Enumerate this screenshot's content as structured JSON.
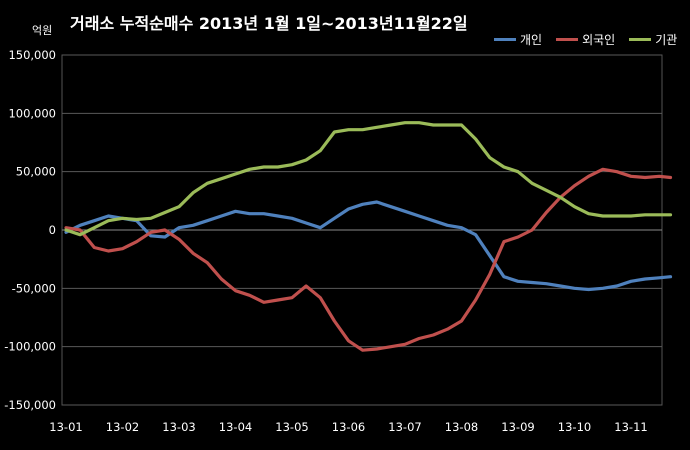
{
  "chart_data": {
    "type": "line",
    "title": "거래소  누적순매수 2013년 1월 1일~2013년11월22일",
    "unit_label": "억원",
    "ylim": [
      -150000,
      150000
    ],
    "yticks": [
      "150,000",
      "100,000",
      "50,000",
      "0",
      "-50,000",
      "-100,000",
      "-150,000"
    ],
    "ytick_values": [
      150000,
      100000,
      50000,
      0,
      -50000,
      -100000,
      -150000
    ],
    "xtick_labels": [
      "13-01",
      "13-02",
      "13-03",
      "13-04",
      "13-05",
      "13-06",
      "13-07",
      "13-08",
      "13-09",
      "13-10",
      "13-11"
    ],
    "grid": true,
    "legend_position": "top-right",
    "x": [
      0,
      0.25,
      0.5,
      0.75,
      1.0,
      1.25,
      1.5,
      1.75,
      2.0,
      2.25,
      2.5,
      2.75,
      3.0,
      3.25,
      3.5,
      3.75,
      4.0,
      4.25,
      4.5,
      4.75,
      5.0,
      5.25,
      5.5,
      5.75,
      6.0,
      6.25,
      6.5,
      6.75,
      7.0,
      7.25,
      7.5,
      7.75,
      8.0,
      8.25,
      8.5,
      8.75,
      9.0,
      9.25,
      9.5,
      9.75,
      10.0,
      10.25,
      10.5,
      10.7
    ],
    "series": [
      {
        "name": "개인",
        "color": "#4f81bd",
        "values": [
          -2000,
          4000,
          8000,
          12000,
          10000,
          8000,
          -5000,
          -6000,
          2000,
          4000,
          8000,
          12000,
          16000,
          14000,
          14000,
          12000,
          10000,
          6000,
          2000,
          10000,
          18000,
          22000,
          24000,
          20000,
          16000,
          12000,
          8000,
          4000,
          2000,
          -4000,
          -22000,
          -40000,
          -44000,
          -45000,
          -46000,
          -48000,
          -50000,
          -51000,
          -50000,
          -48000,
          -44000,
          -42000,
          -41000,
          -40000
        ]
      },
      {
        "name": "외국인",
        "color": "#c0504d",
        "values": [
          2000,
          0,
          -15000,
          -18000,
          -16000,
          -10000,
          -2000,
          0,
          -8000,
          -20000,
          -28000,
          -42000,
          -52000,
          -56000,
          -62000,
          -60000,
          -58000,
          -48000,
          -58000,
          -78000,
          -95000,
          -103000,
          -102000,
          -100000,
          -98000,
          -93000,
          -90000,
          -85000,
          -78000,
          -60000,
          -38000,
          -10000,
          -6000,
          0,
          15000,
          28000,
          38000,
          46000,
          52000,
          50000,
          46000,
          45000,
          46000,
          45000
        ]
      },
      {
        "name": "기관",
        "color": "#9bbb59",
        "values": [
          0,
          -4000,
          2000,
          8000,
          10000,
          9000,
          10000,
          15000,
          20000,
          32000,
          40000,
          44000,
          48000,
          52000,
          54000,
          54000,
          56000,
          60000,
          68000,
          84000,
          86000,
          86000,
          88000,
          90000,
          92000,
          92000,
          90000,
          90000,
          90000,
          78000,
          62000,
          54000,
          50000,
          40000,
          34000,
          28000,
          20000,
          14000,
          12000,
          12000,
          12000,
          13000,
          13000,
          13000
        ]
      }
    ]
  }
}
